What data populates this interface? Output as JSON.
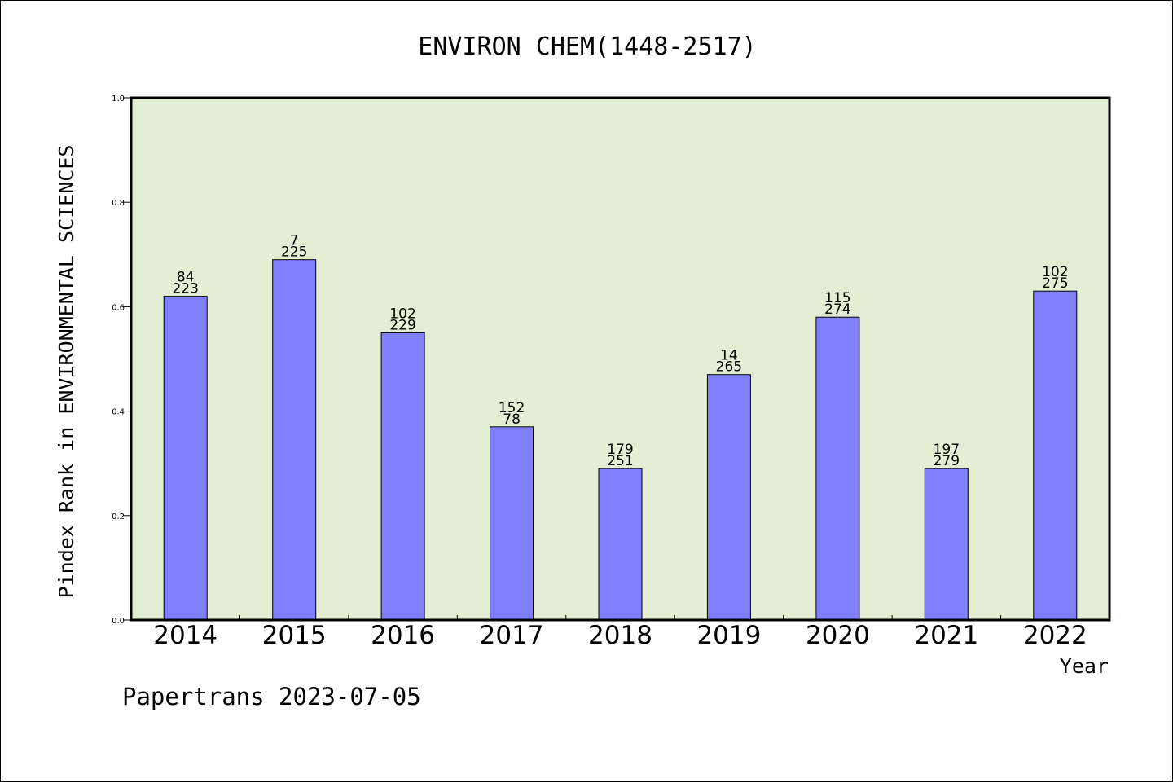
{
  "chart_data": {
    "type": "bar",
    "title": "ENVIRON CHEM(1448-2517)",
    "xlabel": "Year",
    "ylabel": "Pindex Rank in ENVIRONMENTAL SCIENCES",
    "categories": [
      "2014",
      "2015",
      "2016",
      "2017",
      "2018",
      "2019",
      "2020",
      "2021",
      "2022"
    ],
    "values": [
      0.62,
      0.69,
      0.55,
      0.37,
      0.29,
      0.47,
      0.58,
      0.29,
      0.63
    ],
    "labels_top": [
      "84",
      "7",
      "102",
      "152",
      "179",
      "14",
      "115",
      "197",
      "102"
    ],
    "labels_bottom": [
      "223",
      "225",
      "229",
      "78",
      "251",
      "265",
      "274",
      "279",
      "275"
    ],
    "ylim": [
      0.0,
      1.0
    ],
    "yticks": [
      "0.0",
      "0.2",
      "0.4",
      "0.6",
      "0.8",
      "1.0"
    ],
    "grid": false,
    "colors": {
      "bar": "#8080ff",
      "plot_background": "#e2efd5",
      "axis": "#000000"
    }
  },
  "footer": "Papertrans 2023-07-05"
}
